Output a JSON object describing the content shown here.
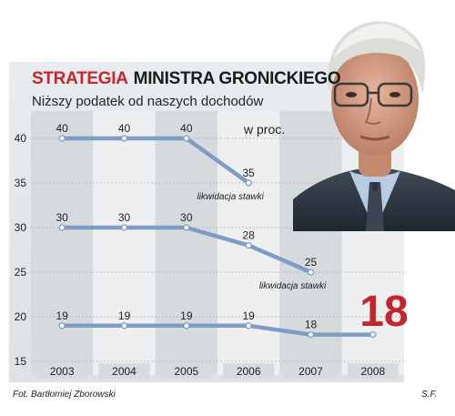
{
  "header": {
    "title_red": "STRATEGIA",
    "title_black": "MINISTRA GRONICKIEGO",
    "subtitle": "Niższy podatek od naszych dochodów",
    "unit": "w proc."
  },
  "footer": {
    "photo_credit": "Fot. Bartłomiej Zborowski",
    "initials": "S.F."
  },
  "highlight": {
    "value": "18",
    "color": "#c4262e"
  },
  "colors": {
    "line": "#7e9cc4",
    "band_light": "#edeff1",
    "band_dark": "#d6dadd",
    "xlabel_box": "#d8dbde",
    "accent": "#c4262e"
  },
  "chart_data": {
    "type": "line",
    "x": [
      "2003",
      "2004",
      "2005",
      "2006",
      "2007",
      "2008"
    ],
    "ylim": [
      15,
      40
    ],
    "yticks": [
      "15",
      "20",
      "25",
      "30",
      "35",
      "40"
    ],
    "series": [
      {
        "values": [
          40,
          40,
          40,
          35,
          null,
          null
        ]
      },
      {
        "values": [
          30,
          30,
          30,
          28,
          25,
          null
        ]
      },
      {
        "values": [
          19,
          19,
          19,
          19,
          18,
          18
        ]
      }
    ],
    "data_labels": [
      [
        "40",
        "40",
        "40",
        "35",
        "",
        ""
      ],
      [
        "30",
        "30",
        "30",
        "28",
        "25",
        ""
      ],
      [
        "19",
        "19",
        "19",
        "19",
        "18",
        ""
      ]
    ],
    "annotations": [
      {
        "text": "likwidacja stawki",
        "near_series": 0,
        "near_x": "2006"
      },
      {
        "text": "likwidacja stawki",
        "near_series": 1,
        "near_x": "2007"
      }
    ],
    "grid": true
  }
}
